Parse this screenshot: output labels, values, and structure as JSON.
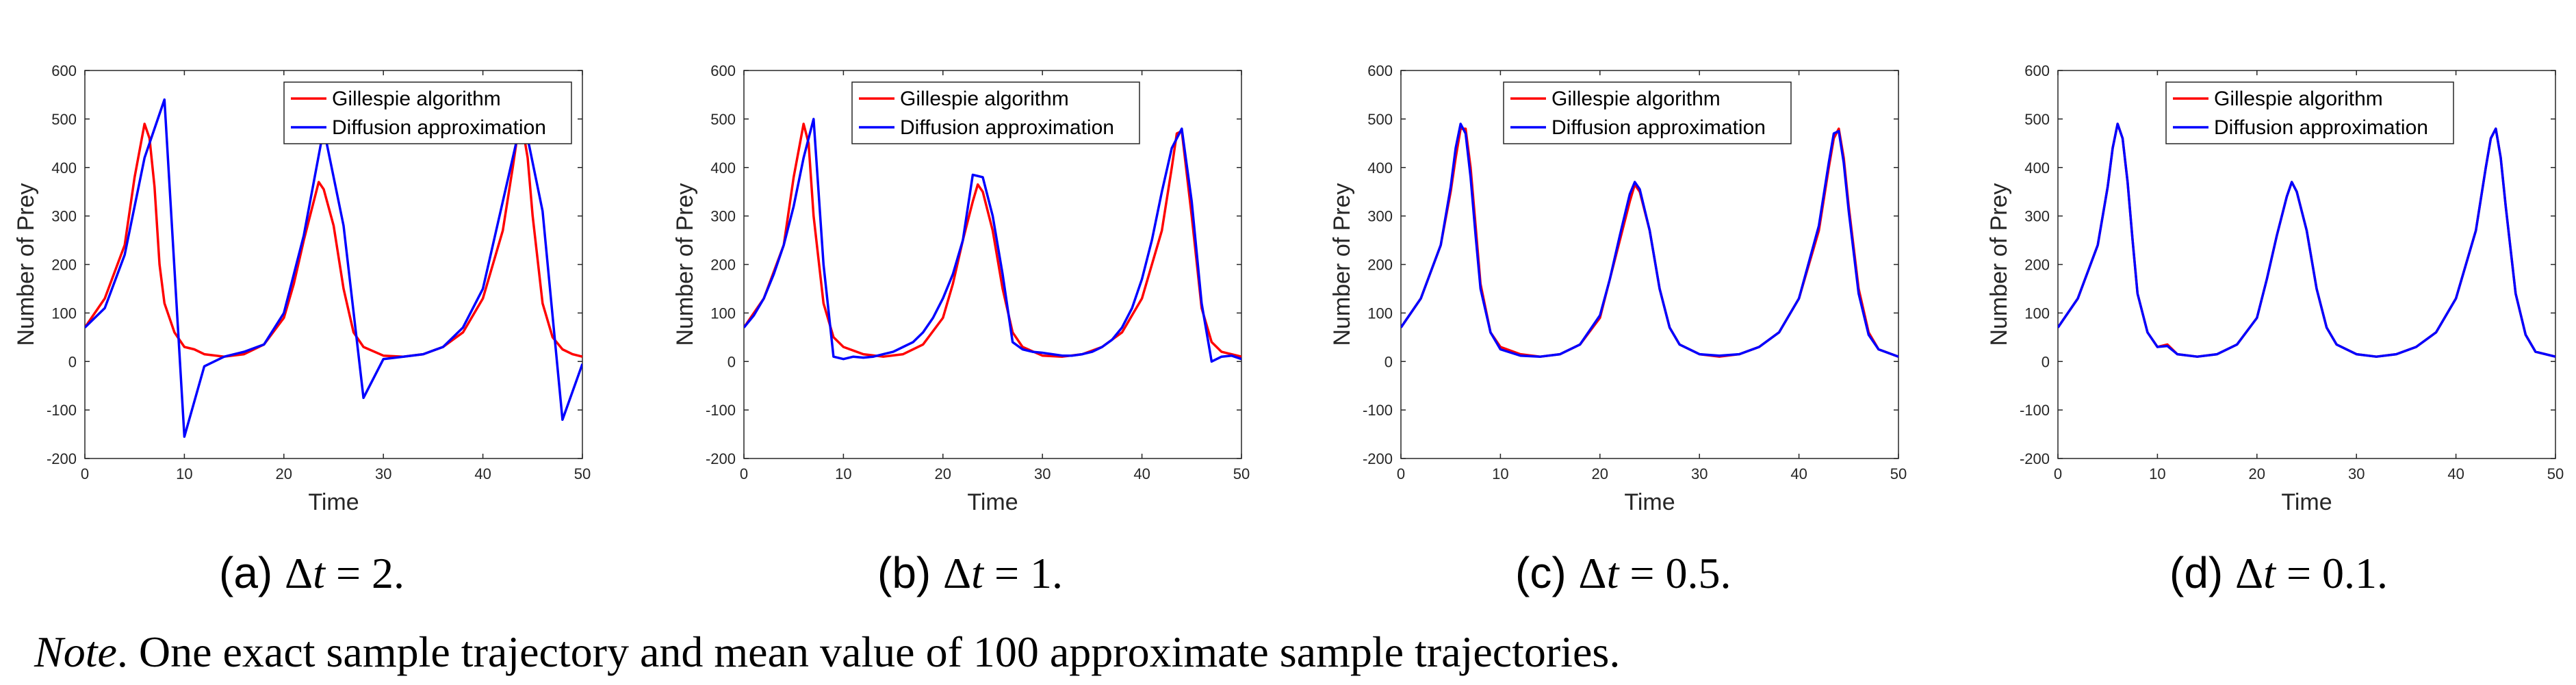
{
  "chart_data": [
    {
      "type": "line",
      "panel": "(a)",
      "caption_prefix": "(a)",
      "caption_symbol": "Δ",
      "caption_var": "t",
      "caption_eq": " = 2.",
      "xlabel": "Time",
      "ylabel": "Number of Prey",
      "xlim": [
        0,
        50
      ],
      "ylim": [
        -200,
        600
      ],
      "xticks": [
        "0",
        "10",
        "20",
        "30",
        "40",
        "50"
      ],
      "yticks": [
        "-200",
        "-100",
        "0",
        "100",
        "200",
        "300",
        "400",
        "500",
        "600"
      ],
      "legend_position": "top-right",
      "series": [
        {
          "name": "Gillespie algorithm",
          "color": "#ff0000",
          "x": [
            0,
            2,
            4,
            5,
            6,
            6.5,
            7,
            7.5,
            8,
            9,
            10,
            11,
            12,
            14,
            16,
            18,
            20,
            21,
            22,
            23,
            23.5,
            24,
            25,
            26,
            27,
            28,
            30,
            32,
            34,
            36,
            38,
            40,
            42,
            43,
            43.5,
            44,
            44.5,
            45,
            46,
            47,
            48,
            49,
            50
          ],
          "y": [
            70,
            130,
            240,
            380,
            490,
            460,
            360,
            200,
            120,
            60,
            30,
            25,
            15,
            10,
            15,
            35,
            90,
            160,
            250,
            330,
            370,
            355,
            280,
            150,
            60,
            30,
            12,
            10,
            15,
            30,
            60,
            130,
            270,
            400,
            470,
            480,
            420,
            300,
            120,
            50,
            25,
            15,
            10
          ]
        },
        {
          "name": "Diffusion approximation",
          "color": "#0000ff",
          "x": [
            0,
            2,
            4,
            6,
            8,
            10,
            12,
            14,
            16,
            18,
            20,
            22,
            24,
            26,
            28,
            30,
            32,
            34,
            36,
            38,
            40,
            42,
            44,
            46,
            48,
            50
          ],
          "y": [
            70,
            110,
            220,
            420,
            540,
            -155,
            -10,
            10,
            20,
            35,
            100,
            260,
            480,
            280,
            -75,
            5,
            10,
            15,
            30,
            70,
            150,
            330,
            510,
            310,
            -120,
            -5
          ]
        }
      ]
    },
    {
      "type": "line",
      "panel": "(b)",
      "caption_prefix": "(b)",
      "caption_symbol": "Δ",
      "caption_var": "t",
      "caption_eq": " = 1.",
      "xlabel": "Time",
      "ylabel": "Number of Prey",
      "xlim": [
        0,
        50
      ],
      "ylim": [
        -200,
        600
      ],
      "xticks": [
        "0",
        "10",
        "20",
        "30",
        "40",
        "50"
      ],
      "yticks": [
        "-200",
        "-100",
        "0",
        "100",
        "200",
        "300",
        "400",
        "500",
        "600"
      ],
      "legend_position": "top-center",
      "series": [
        {
          "name": "Gillespie algorithm",
          "color": "#ff0000",
          "x": [
            0,
            2,
            4,
            5,
            6,
            6.5,
            7,
            8,
            9,
            10,
            12,
            14,
            16,
            18,
            20,
            21,
            22,
            23,
            23.5,
            24,
            25,
            26,
            27,
            28,
            30,
            32,
            34,
            36,
            38,
            40,
            42,
            43,
            43.5,
            44,
            45,
            46,
            47,
            48,
            50
          ],
          "y": [
            70,
            130,
            240,
            380,
            490,
            450,
            300,
            120,
            50,
            30,
            15,
            10,
            15,
            35,
            90,
            160,
            250,
            330,
            365,
            350,
            270,
            150,
            60,
            30,
            12,
            10,
            15,
            30,
            60,
            130,
            270,
            400,
            470,
            475,
            300,
            110,
            40,
            20,
            10
          ]
        },
        {
          "name": "Diffusion approximation",
          "color": "#0000ff",
          "x": [
            0,
            1,
            2,
            3,
            4,
            5,
            6,
            7,
            8,
            9,
            10,
            11,
            12,
            13,
            14,
            15,
            16,
            17,
            18,
            19,
            20,
            21,
            22,
            23,
            24,
            25,
            26,
            27,
            28,
            29,
            30,
            31,
            32,
            33,
            34,
            35,
            36,
            37,
            38,
            39,
            40,
            41,
            42,
            43,
            44,
            45,
            46,
            47,
            48,
            49,
            50
          ],
          "y": [
            70,
            95,
            130,
            180,
            240,
            320,
            420,
            500,
            200,
            10,
            5,
            10,
            8,
            10,
            15,
            20,
            30,
            40,
            60,
            90,
            130,
            180,
            250,
            385,
            380,
            300,
            180,
            40,
            25,
            20,
            18,
            15,
            12,
            12,
            15,
            20,
            30,
            45,
            70,
            110,
            170,
            250,
            350,
            440,
            480,
            330,
            120,
            0,
            10,
            12,
            5
          ]
        }
      ]
    },
    {
      "type": "line",
      "panel": "(c)",
      "caption_prefix": "(c)",
      "caption_symbol": "Δ",
      "caption_var": "t",
      "caption_eq": " = 0.5.",
      "xlabel": "Time",
      "ylabel": "Number of Prey",
      "xlim": [
        0,
        50
      ],
      "ylim": [
        -200,
        600
      ],
      "xticks": [
        "0",
        "10",
        "20",
        "30",
        "40",
        "50"
      ],
      "yticks": [
        "-200",
        "-100",
        "0",
        "100",
        "200",
        "300",
        "400",
        "500",
        "600"
      ],
      "legend_position": "top-left",
      "series": [
        {
          "name": "Gillespie algorithm",
          "color": "#ff0000",
          "x": [
            0,
            2,
            4,
            5,
            5.5,
            6,
            6.5,
            7,
            7.5,
            8,
            9,
            10,
            12,
            14,
            16,
            18,
            20,
            21,
            22,
            23,
            23.5,
            24,
            25,
            26,
            27,
            28,
            30,
            32,
            34,
            36,
            38,
            40,
            42,
            43,
            43.5,
            44,
            44.5,
            45,
            46,
            47,
            48,
            50
          ],
          "y": [
            70,
            130,
            240,
            350,
            420,
            480,
            480,
            400,
            280,
            160,
            60,
            30,
            15,
            10,
            15,
            35,
            90,
            170,
            250,
            330,
            365,
            350,
            270,
            150,
            70,
            35,
            15,
            10,
            15,
            30,
            60,
            130,
            270,
            400,
            460,
            480,
            420,
            320,
            150,
            60,
            25,
            10
          ]
        },
        {
          "name": "Diffusion approximation",
          "color": "#0000ff",
          "x": [
            0,
            2,
            4,
            5,
            5.5,
            6,
            6.5,
            7,
            7.5,
            8,
            9,
            10,
            12,
            14,
            16,
            18,
            20,
            21,
            22,
            23,
            23.5,
            24,
            25,
            26,
            27,
            28,
            30,
            32,
            34,
            36,
            38,
            40,
            42,
            43,
            43.5,
            44,
            44.5,
            45,
            46,
            47,
            48,
            50
          ],
          "y": [
            70,
            130,
            240,
            360,
            440,
            490,
            470,
            380,
            260,
            150,
            60,
            25,
            12,
            10,
            15,
            35,
            95,
            170,
            260,
            345,
            370,
            355,
            270,
            150,
            70,
            35,
            15,
            12,
            15,
            30,
            60,
            130,
            280,
            410,
            470,
            475,
            410,
            310,
            140,
            55,
            25,
            10
          ]
        }
      ]
    },
    {
      "type": "line",
      "panel": "(d)",
      "caption_prefix": "(d)",
      "caption_symbol": "Δ",
      "caption_var": "t",
      "caption_eq": " = 0.1.",
      "xlabel": "Time",
      "ylabel": "Number of Prey",
      "xlim": [
        0,
        50
      ],
      "ylim": [
        -200,
        600
      ],
      "xticks": [
        "0",
        "10",
        "20",
        "30",
        "40",
        "50"
      ],
      "yticks": [
        "-200",
        "-100",
        "0",
        "100",
        "200",
        "300",
        "400",
        "500",
        "600"
      ],
      "legend_position": "top-right",
      "series": [
        {
          "name": "Gillespie algorithm",
          "color": "#ff0000",
          "x": [
            0,
            2,
            4,
            5,
            5.5,
            6,
            6.5,
            7,
            7.5,
            8,
            9,
            10,
            11,
            12,
            14,
            16,
            18,
            20,
            21,
            22,
            23,
            23.5,
            24,
            25,
            26,
            27,
            28,
            30,
            32,
            34,
            36,
            38,
            40,
            42,
            43,
            43.5,
            44,
            44.5,
            45,
            46,
            47,
            48,
            50
          ],
          "y": [
            70,
            130,
            240,
            360,
            440,
            490,
            460,
            370,
            250,
            140,
            60,
            30,
            35,
            15,
            10,
            15,
            35,
            90,
            170,
            260,
            340,
            370,
            350,
            270,
            150,
            70,
            35,
            15,
            10,
            15,
            30,
            60,
            130,
            270,
            400,
            460,
            480,
            420,
            320,
            140,
            55,
            20,
            10
          ]
        },
        {
          "name": "Diffusion approximation",
          "color": "#0000ff",
          "x": [
            0,
            2,
            4,
            5,
            5.5,
            6,
            6.5,
            7,
            7.5,
            8,
            9,
            10,
            11,
            12,
            14,
            16,
            18,
            20,
            21,
            22,
            23,
            23.5,
            24,
            25,
            26,
            27,
            28,
            30,
            32,
            34,
            36,
            38,
            40,
            42,
            43,
            43.5,
            44,
            44.5,
            45,
            46,
            47,
            48,
            50
          ],
          "y": [
            70,
            130,
            240,
            360,
            440,
            490,
            460,
            370,
            250,
            140,
            60,
            30,
            32,
            15,
            10,
            15,
            35,
            90,
            170,
            260,
            340,
            370,
            350,
            270,
            150,
            70,
            35,
            15,
            10,
            15,
            30,
            60,
            130,
            270,
            400,
            460,
            480,
            420,
            320,
            140,
            55,
            20,
            10
          ]
        }
      ]
    }
  ],
  "note": {
    "label": "Note",
    "text": ". One exact sample trajectory and mean value of 100 approximate sample trajectories."
  }
}
